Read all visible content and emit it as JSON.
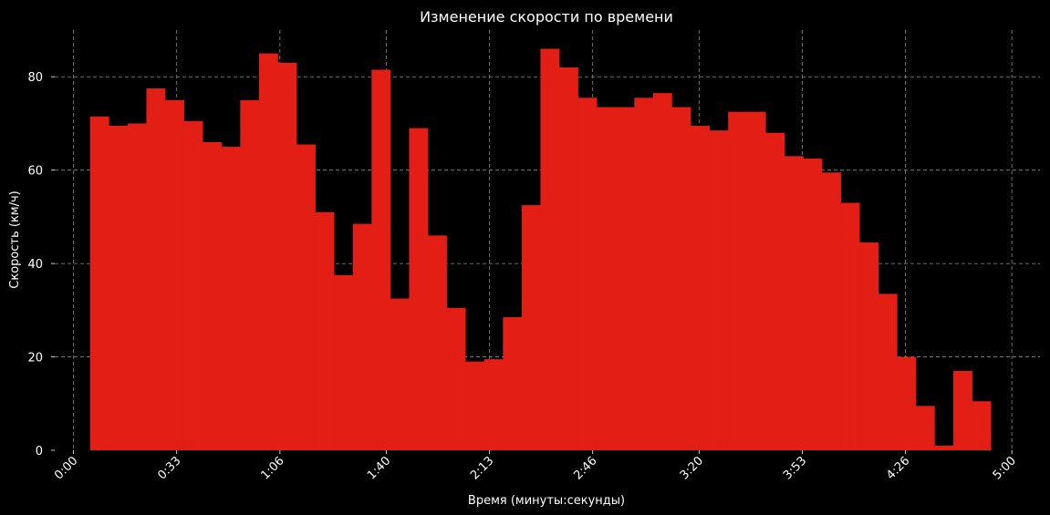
{
  "chart_data": {
    "type": "bar",
    "title": "Изменение скорости по времени",
    "xlabel": "Время (минуты:секунды)",
    "ylabel": "Скорость (км/ч)",
    "x_unit": "seconds",
    "xlim": [
      -6,
      309
    ],
    "ylim": [
      0,
      90
    ],
    "x_ticks": [
      {
        "value": 0,
        "label": "0:00"
      },
      {
        "value": 33,
        "label": "0:33"
      },
      {
        "value": 66,
        "label": "1:06"
      },
      {
        "value": 100,
        "label": "1:40"
      },
      {
        "value": 133,
        "label": "2:13"
      },
      {
        "value": 166,
        "label": "2:46"
      },
      {
        "value": 200,
        "label": "3:20"
      },
      {
        "value": 233,
        "label": "3:53"
      },
      {
        "value": 266,
        "label": "4:26"
      },
      {
        "value": 300,
        "label": "5:00"
      }
    ],
    "y_ticks": [
      0,
      20,
      40,
      60,
      80
    ],
    "bar_width_seconds": 6,
    "bar_starts_seconds": [
      5.3,
      11.3,
      17.3,
      23.3,
      29.3,
      35.3,
      41.3,
      47.3,
      53.3,
      59.3,
      65.3,
      71.3,
      77.3,
      83.3,
      89.3,
      95.3,
      101.3,
      107.3,
      113.3,
      119.3,
      125.3,
      131.3,
      137.3,
      143.3,
      149.3,
      155.3,
      161.3,
      167.3,
      173.3,
      179.3,
      185.3,
      191.3,
      197.3,
      203.3,
      209.3,
      215.3,
      221.3,
      227.3,
      233.3,
      239.3,
      245.3,
      251.3,
      257.3,
      263.3,
      269.3,
      275.3,
      281.3,
      287.3
    ],
    "values": [
      71.5,
      69.5,
      70.0,
      77.5,
      75.0,
      70.5,
      66.0,
      65.0,
      75.0,
      85.0,
      83.0,
      65.5,
      51.0,
      37.5,
      48.5,
      81.5,
      32.5,
      69.0,
      46.0,
      30.5,
      19.0,
      19.5,
      28.5,
      52.5,
      86.0,
      82.0,
      75.5,
      73.5,
      73.5,
      75.5,
      76.5,
      73.5,
      69.5,
      68.5,
      72.5,
      72.5,
      68.0,
      63.0,
      62.5,
      59.5,
      53.0,
      44.5,
      33.5,
      20.0,
      9.5,
      1.0,
      17.0,
      10.5
    ],
    "bar_color": "#e31e14",
    "background": "#000000",
    "grid": true,
    "grid_color": "#8a8a8a",
    "x_tick_rotation": 45
  }
}
